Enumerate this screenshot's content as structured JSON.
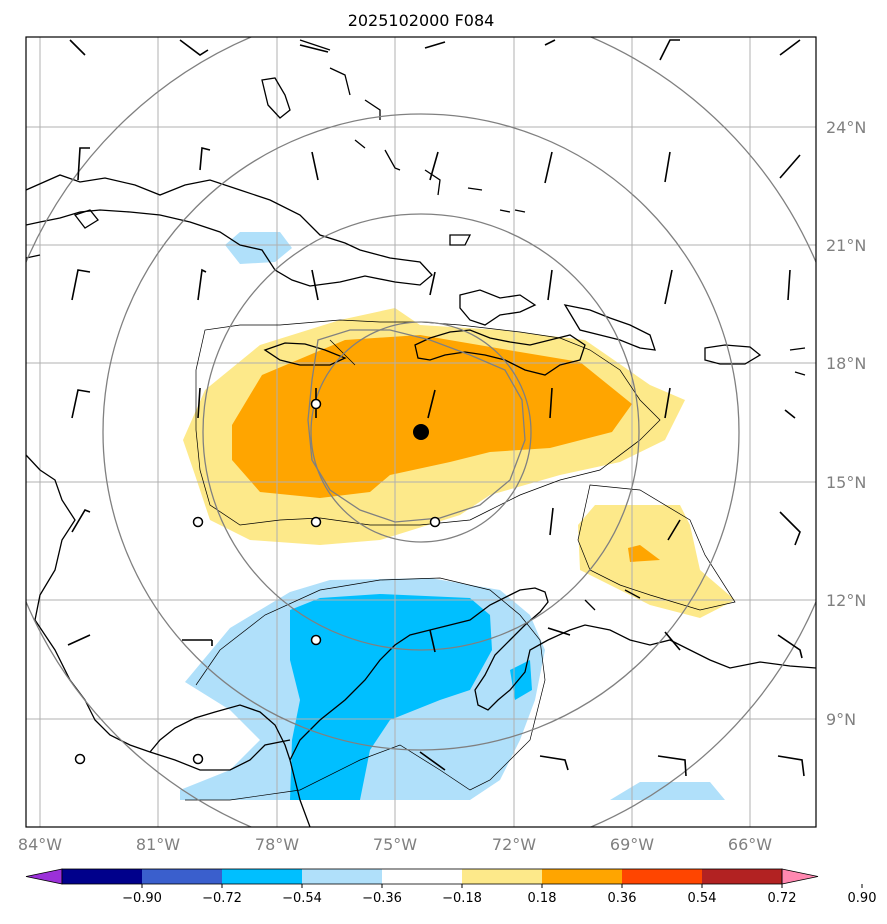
{
  "title": "2025102000 F084",
  "map": {
    "lon_range": [
      -84.5,
      -64.5
    ],
    "lat_range": [
      6.5,
      26.8
    ],
    "lon_ticks": [
      -84,
      -81,
      -78,
      -75,
      -72,
      -69,
      -66
    ],
    "lat_ticks": [
      9,
      12,
      15,
      18,
      21,
      24
    ],
    "lon_labels": [
      "84°W",
      "81°W",
      "78°W",
      "75°W",
      "72°W",
      "69°W",
      "66°W"
    ],
    "lat_labels": [
      "9°N",
      "12°N",
      "15°N",
      "18°N",
      "21°N",
      "24°N"
    ],
    "storm_center": {
      "lon": -74.3,
      "lat": 16.2
    },
    "range_rings_deg": [
      3,
      5.5,
      8.3,
      11
    ]
  },
  "colorbar": {
    "ticks": [
      "−0.90",
      "−0.72",
      "−0.54",
      "−0.36",
      "−0.18",
      "0.18",
      "0.36",
      "0.54",
      "0.72",
      "0.90"
    ],
    "colors": [
      "#9b30d9",
      "#00008b",
      "#3a5fcd",
      "#00bfff",
      "#b0e0fa",
      "#ffffff",
      "#fde98a",
      "#ffa500",
      "#ff4500",
      "#b22222",
      "#ff88b0"
    ]
  }
}
